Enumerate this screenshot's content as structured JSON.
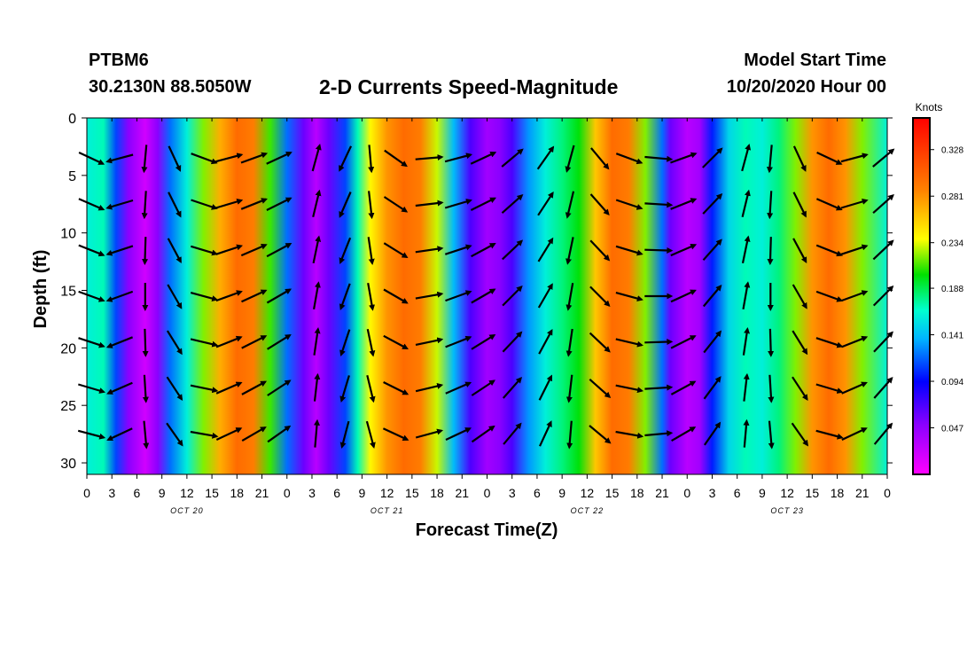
{
  "header": {
    "station": "PTBM6",
    "coords": "30.2130N 88.5050W",
    "title": "2-D Currents Speed-Magnitude",
    "model_label": "Model Start Time",
    "model_time": "10/20/2020 Hour 00"
  },
  "chart_data": {
    "type": "heatmap",
    "title": "2-D Currents Speed-Magnitude",
    "xlabel": "Forecast Time(Z)",
    "ylabel": "Depth (ft)",
    "colorbar_label": "Knots",
    "x_ticks": [
      "0",
      "3",
      "6",
      "9",
      "12",
      "15",
      "18",
      "21",
      "0",
      "3",
      "6",
      "9",
      "12",
      "15",
      "18",
      "21",
      "0",
      "3",
      "6",
      "9",
      "12",
      "15",
      "18",
      "21",
      "0",
      "3",
      "6",
      "9",
      "12",
      "15",
      "18",
      "21",
      "0"
    ],
    "x_range_hours": [
      0,
      96
    ],
    "day_labels": [
      {
        "hour": 12,
        "label": "OCT 20"
      },
      {
        "hour": 36,
        "label": "OCT 21"
      },
      {
        "hour": 60,
        "label": "OCT 22"
      },
      {
        "hour": 84,
        "label": "OCT 23"
      }
    ],
    "y_ticks": [
      "0",
      "5",
      "10",
      "15",
      "20",
      "25",
      "30"
    ],
    "y_range_ft": [
      0,
      31
    ],
    "colorbar_ticks": [
      "0.047",
      "0.094",
      "0.141",
      "0.188",
      "0.234",
      "0.281",
      "0.328"
    ],
    "colorbar_range": [
      0.0,
      0.36
    ],
    "speed_profile_hours": [
      0,
      2,
      3.5,
      5,
      7,
      8.5,
      10,
      12,
      14,
      16,
      18,
      20,
      22,
      24,
      26,
      27.5,
      29,
      31,
      32.5,
      34,
      36,
      38,
      40,
      42,
      44,
      46,
      48,
      49.5,
      51,
      53,
      55,
      57,
      59,
      61,
      63,
      65,
      67,
      69,
      70,
      72,
      73.5,
      75,
      77,
      79,
      81,
      83,
      85,
      87,
      89,
      91,
      93,
      96
    ],
    "speed_profile_knots": [
      0.16,
      0.17,
      0.11,
      0.05,
      0.02,
      0.05,
      0.12,
      0.16,
      0.22,
      0.27,
      0.3,
      0.29,
      0.21,
      0.12,
      0.06,
      0.03,
      0.06,
      0.11,
      0.17,
      0.24,
      0.28,
      0.3,
      0.29,
      0.23,
      0.14,
      0.07,
      0.04,
      0.05,
      0.07,
      0.13,
      0.16,
      0.18,
      0.2,
      0.26,
      0.3,
      0.29,
      0.22,
      0.12,
      0.06,
      0.03,
      0.04,
      0.1,
      0.15,
      0.17,
      0.16,
      0.18,
      0.22,
      0.28,
      0.3,
      0.28,
      0.22,
      0.16
    ],
    "vector_hours": [
      0.5,
      4,
      7,
      10.5,
      14,
      17,
      20,
      23,
      27.5,
      31,
      34,
      37,
      41,
      44.5,
      47.5,
      51,
      55,
      58,
      61.5,
      65,
      68.5,
      71.5,
      75,
      79,
      82,
      85.5,
      89,
      92,
      95.5
    ],
    "vector_depths_ft": [
      3.5,
      7.5,
      11.5,
      15.5,
      19.5,
      23.5,
      27.5
    ],
    "vector_directions_deg": [
      -20,
      -160,
      -90,
      -60,
      -15,
      20,
      25,
      30,
      80,
      -110,
      -80,
      -30,
      10,
      20,
      30,
      45,
      60,
      -100,
      -45,
      -15,
      0,
      25,
      50,
      80,
      -90,
      -60,
      -20,
      20,
      45
    ]
  }
}
